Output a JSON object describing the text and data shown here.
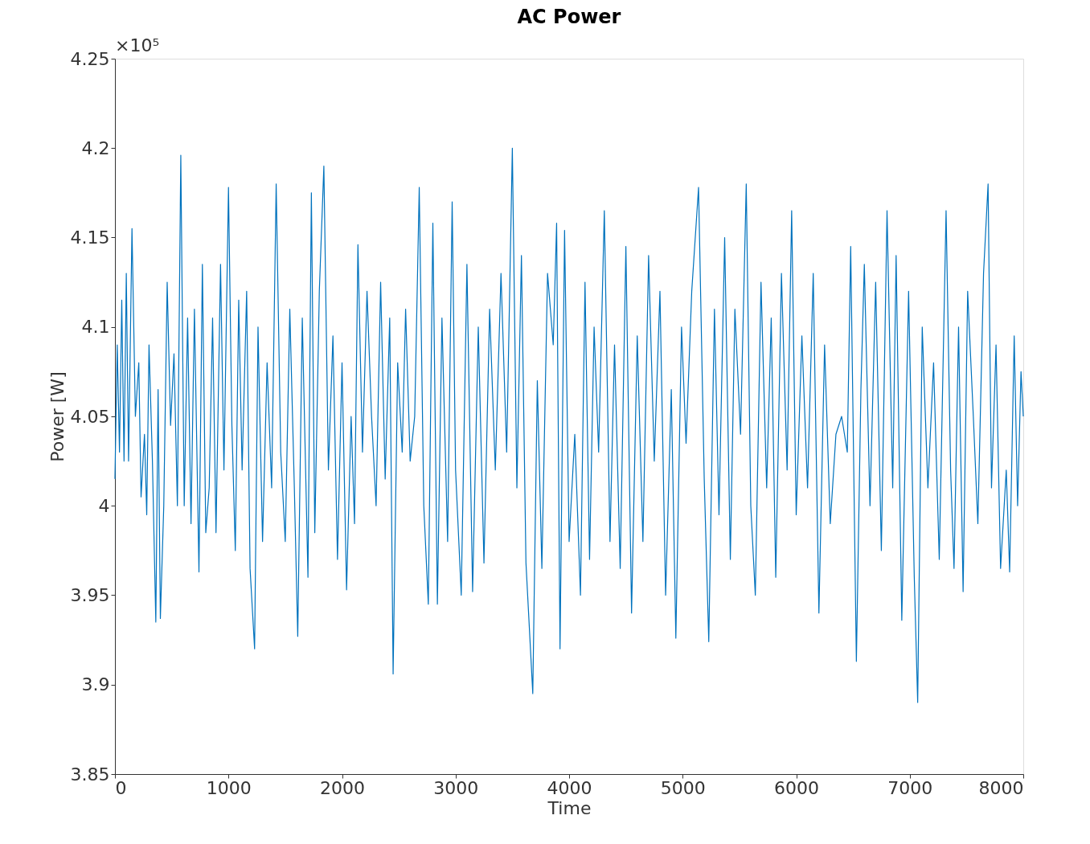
{
  "chart_data": {
    "type": "line",
    "title": "AC Power",
    "xlabel": "Time",
    "ylabel": "Power [W]",
    "annotations": [
      "×10⁵"
    ],
    "xlim": [
      0,
      8000
    ],
    "xticks": [
      0,
      1000,
      2000,
      3000,
      4000,
      5000,
      6000,
      7000,
      8000
    ],
    "ylim": [
      3.85,
      4.25
    ],
    "yticks": [
      3.85,
      3.9,
      3.95,
      4,
      4.05,
      4.1,
      4.15,
      4.2,
      4.25
    ],
    "grid": false,
    "marker": "none",
    "line_style": "solid",
    "x": [
      0,
      20,
      40,
      60,
      80,
      100,
      120,
      150,
      180,
      210,
      230,
      260,
      280,
      300,
      330,
      360,
      380,
      400,
      430,
      460,
      490,
      520,
      550,
      580,
      610,
      640,
      670,
      700,
      740,
      770,
      800,
      830,
      860,
      890,
      930,
      960,
      1000,
      1030,
      1060,
      1090,
      1120,
      1160,
      1190,
      1230,
      1260,
      1300,
      1340,
      1380,
      1420,
      1460,
      1500,
      1540,
      1580,
      1610,
      1650,
      1700,
      1730,
      1760,
      1800,
      1840,
      1880,
      1920,
      1960,
      2000,
      2040,
      2080,
      2110,
      2140,
      2180,
      2220,
      2260,
      2300,
      2340,
      2380,
      2420,
      2450,
      2490,
      2530,
      2560,
      2600,
      2640,
      2680,
      2720,
      2760,
      2800,
      2840,
      2880,
      2930,
      2970,
      3000,
      3050,
      3100,
      3150,
      3200,
      3250,
      3300,
      3350,
      3400,
      3450,
      3500,
      3540,
      3580,
      3620,
      3680,
      3720,
      3760,
      3810,
      3860,
      3890,
      3920,
      3960,
      4000,
      4050,
      4100,
      4140,
      4180,
      4220,
      4260,
      4310,
      4360,
      4400,
      4450,
      4500,
      4550,
      4600,
      4650,
      4700,
      4750,
      4800,
      4850,
      4900,
      4940,
      4990,
      5030,
      5080,
      5140,
      5190,
      5230,
      5280,
      5320,
      5370,
      5420,
      5460,
      5510,
      5560,
      5600,
      5640,
      5690,
      5740,
      5780,
      5820,
      5870,
      5920,
      5960,
      6000,
      6050,
      6100,
      6150,
      6200,
      6250,
      6300,
      6350,
      6400,
      6450,
      6480,
      6530,
      6570,
      6600,
      6650,
      6700,
      6750,
      6800,
      6850,
      6880,
      6930,
      6990,
      7040,
      7070,
      7110,
      7160,
      7210,
      7260,
      7320,
      7360,
      7390,
      7430,
      7470,
      7510,
      7560,
      7600,
      7650,
      7690,
      7720,
      7760,
      7800,
      7850,
      7880,
      7920,
      7950,
      7980,
      8000
    ],
    "series": [
      {
        "color": "#0072bd",
        "values": [
          4.015,
          4.09,
          4.03,
          4.115,
          4.025,
          4.13,
          4.025,
          4.155,
          4.05,
          4.08,
          4.005,
          4.04,
          3.995,
          4.09,
          4.025,
          3.935,
          4.065,
          3.937,
          4.0,
          4.125,
          4.045,
          4.085,
          4.0,
          4.196,
          4.0,
          4.105,
          3.99,
          4.11,
          3.963,
          4.135,
          3.985,
          4.01,
          4.105,
          3.985,
          4.135,
          4.02,
          4.178,
          4.045,
          3.975,
          4.115,
          4.02,
          4.12,
          3.965,
          3.92,
          4.1,
          3.98,
          4.08,
          4.01,
          4.18,
          4.03,
          3.98,
          4.11,
          4.01,
          3.927,
          4.105,
          3.96,
          4.175,
          3.985,
          4.12,
          4.19,
          4.02,
          4.095,
          3.97,
          4.08,
          3.953,
          4.05,
          3.99,
          4.146,
          4.03,
          4.12,
          4.05,
          4.0,
          4.125,
          4.015,
          4.105,
          3.906,
          4.08,
          4.03,
          4.11,
          4.025,
          4.05,
          4.178,
          4.0,
          3.945,
          4.158,
          3.945,
          4.105,
          3.98,
          4.17,
          4.02,
          3.95,
          4.135,
          3.952,
          4.1,
          3.968,
          4.11,
          4.02,
          4.13,
          4.03,
          4.2,
          4.01,
          4.14,
          3.968,
          3.895,
          4.07,
          3.965,
          4.13,
          4.09,
          4.158,
          3.92,
          4.154,
          3.98,
          4.04,
          3.95,
          4.125,
          3.97,
          4.1,
          4.03,
          4.165,
          3.98,
          4.09,
          3.965,
          4.145,
          3.94,
          4.095,
          3.98,
          4.14,
          4.025,
          4.12,
          3.95,
          4.065,
          3.926,
          4.1,
          4.035,
          4.12,
          4.178,
          4.015,
          3.924,
          4.11,
          3.995,
          4.15,
          3.97,
          4.11,
          4.04,
          4.18,
          4.0,
          3.95,
          4.125,
          4.01,
          4.105,
          3.96,
          4.13,
          4.02,
          4.165,
          3.995,
          4.095,
          4.01,
          4.13,
          3.94,
          4.09,
          3.99,
          4.04,
          4.05,
          4.03,
          4.145,
          3.913,
          4.065,
          4.135,
          4.0,
          4.125,
          3.975,
          4.165,
          4.01,
          4.14,
          3.936,
          4.12,
          3.96,
          3.89,
          4.1,
          4.01,
          4.08,
          3.97,
          4.165,
          4.02,
          3.965,
          4.1,
          3.952,
          4.12,
          4.05,
          3.99,
          4.13,
          4.18,
          4.01,
          4.09,
          3.965,
          4.02,
          3.963,
          4.095,
          4.0,
          4.075,
          4.05
        ]
      }
    ]
  }
}
